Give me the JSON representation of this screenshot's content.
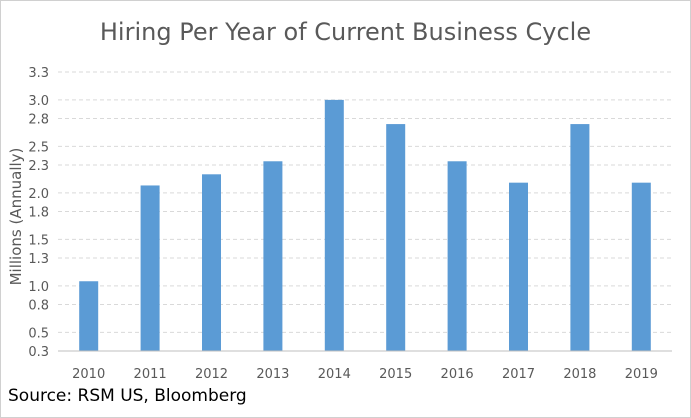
{
  "chart_data": {
    "type": "bar",
    "title": "Hiring Per Year of Current Business Cycle",
    "xlabel": "",
    "ylabel": "Millions (Annually)",
    "categories": [
      "2010",
      "2011",
      "2012",
      "2013",
      "2014",
      "2015",
      "2016",
      "2017",
      "2018",
      "2019"
    ],
    "values": [
      1.05,
      2.08,
      2.2,
      2.34,
      3.0,
      2.74,
      2.34,
      2.11,
      2.74,
      2.11
    ],
    "ylim": [
      0.3,
      3.3
    ],
    "yticks": [
      "0.3",
      "0.5",
      "0.8",
      "1.0",
      "1.3",
      "1.5",
      "1.8",
      "2.0",
      "2.3",
      "2.5",
      "2.8",
      "3.0",
      "3.3"
    ],
    "grid": true,
    "bar_color": "#5b9bd5",
    "grid_color": "#d9d9d9"
  },
  "source": "Source: RSM US, Bloomberg"
}
